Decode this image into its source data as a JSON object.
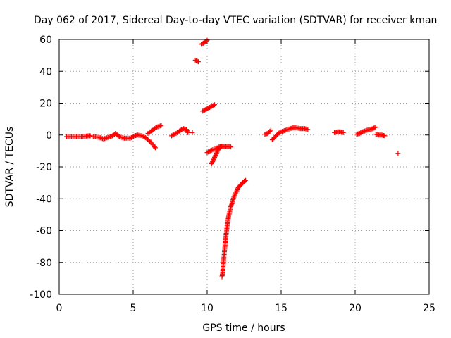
{
  "chart_data": {
    "type": "scatter",
    "title": "Day 062 of 2017, Sidereal Day-to-day VTEC variation (SDTVAR) for receiver kman",
    "xlabel": "GPS time / hours",
    "ylabel": "SDTVAR / TECUs",
    "xlim": [
      0,
      25
    ],
    "ylim": [
      -100,
      60
    ],
    "xticks": [
      0,
      5,
      10,
      15,
      20,
      25
    ],
    "yticks": [
      -100,
      -80,
      -60,
      -40,
      -20,
      0,
      20,
      40,
      60
    ],
    "grid": true,
    "marker": "+",
    "color": "#ff0000",
    "segments": [
      {
        "x": [
          0.5,
          1.0,
          1.5,
          2.0,
          2.1
        ],
        "y": [
          -1,
          -1,
          -1,
          -0.5,
          -0.5
        ]
      },
      {
        "x": [
          2.3,
          2.7,
          3.0,
          3.3,
          3.6,
          3.8,
          4.0
        ],
        "y": [
          -1,
          -1.5,
          -2.5,
          -1.5,
          -0.5,
          1.0,
          -0.5
        ]
      },
      {
        "x": [
          4.0,
          4.4,
          4.8,
          5.1,
          5.3,
          5.6,
          5.9,
          6.2,
          6.4,
          6.5
        ],
        "y": [
          -1.0,
          -2.0,
          -2.0,
          -0.5,
          0.0,
          -0.5,
          -2.0,
          -4.5,
          -7.0,
          -8.0
        ]
      },
      {
        "x": [
          6.0,
          6.3,
          6.6,
          6.9
        ],
        "y": [
          1,
          3,
          5,
          6
        ]
      },
      {
        "x": [
          7.6,
          7.9,
          8.2,
          8.4,
          8.6,
          8.7
        ],
        "y": [
          -0.5,
          1.0,
          3.0,
          4.0,
          3.5,
          1.5
        ]
      },
      {
        "x": [
          9.0
        ],
        "y": [
          1.5
        ]
      },
      {
        "x": [
          9.2,
          9.4
        ],
        "y": [
          47,
          46
        ]
      },
      {
        "x": [
          9.6,
          9.8,
          10.0
        ],
        "y": [
          57,
          58,
          59.5
        ]
      },
      {
        "x": [
          9.7,
          9.9,
          10.1,
          10.3,
          10.5
        ],
        "y": [
          15,
          16,
          17,
          18,
          19
        ]
      },
      {
        "x": [
          10.0,
          10.3,
          10.6,
          10.8,
          11.0
        ],
        "y": [
          -11,
          -9.5,
          -8.5,
          -7.5,
          -7.0
        ]
      },
      {
        "x": [
          10.3,
          10.4,
          10.5,
          10.6,
          10.7,
          10.8,
          10.9,
          11.0
        ],
        "y": [
          -18,
          -16,
          -14,
          -12,
          -10,
          -8.5,
          -7.5,
          -7.0
        ]
      },
      {
        "x": [
          11.0,
          11.2,
          11.4,
          11.6
        ],
        "y": [
          -7.0,
          -7.5,
          -7.0,
          -7.5
        ]
      },
      {
        "x": [
          11.0,
          11.05,
          11.1,
          11.15,
          11.2,
          11.25,
          11.3,
          11.35,
          11.4,
          11.45,
          11.5,
          11.6,
          11.7,
          11.8,
          11.9,
          12.0,
          12.1,
          12.2,
          12.3,
          12.4,
          12.5,
          12.6
        ],
        "y": [
          -89,
          -86,
          -80,
          -75,
          -70,
          -65,
          -61,
          -57,
          -54,
          -51,
          -49,
          -45,
          -42,
          -39,
          -37,
          -35,
          -33,
          -32,
          -31,
          -30,
          -29,
          -28.5
        ]
      },
      {
        "x": [
          13.9,
          14.1,
          14.3
        ],
        "y": [
          0.5,
          1.0,
          3.0
        ]
      },
      {
        "x": [
          14.4,
          14.6,
          14.8,
          15.0,
          15.3,
          15.6,
          15.8,
          16.0,
          16.3,
          16.6,
          16.8
        ],
        "y": [
          -3,
          -1,
          1,
          2,
          3,
          4,
          4.5,
          4.5,
          4,
          4,
          3.5
        ]
      },
      {
        "x": [
          18.6,
          18.8,
          19.0,
          19.2
        ],
        "y": [
          1.5,
          2.0,
          2.0,
          1.5
        ]
      },
      {
        "x": [
          20.1,
          20.3,
          20.5,
          20.8,
          21.0,
          21.2,
          21.4
        ],
        "y": [
          0.5,
          1.0,
          2.0,
          3.0,
          3.5,
          4.0,
          5.0
        ]
      },
      {
        "x": [
          21.4,
          21.6,
          21.8,
          22.0
        ],
        "y": [
          0.5,
          0.0,
          0.0,
          -0.5
        ]
      },
      {
        "x": [
          22.9
        ],
        "y": [
          -11.5
        ]
      }
    ]
  }
}
